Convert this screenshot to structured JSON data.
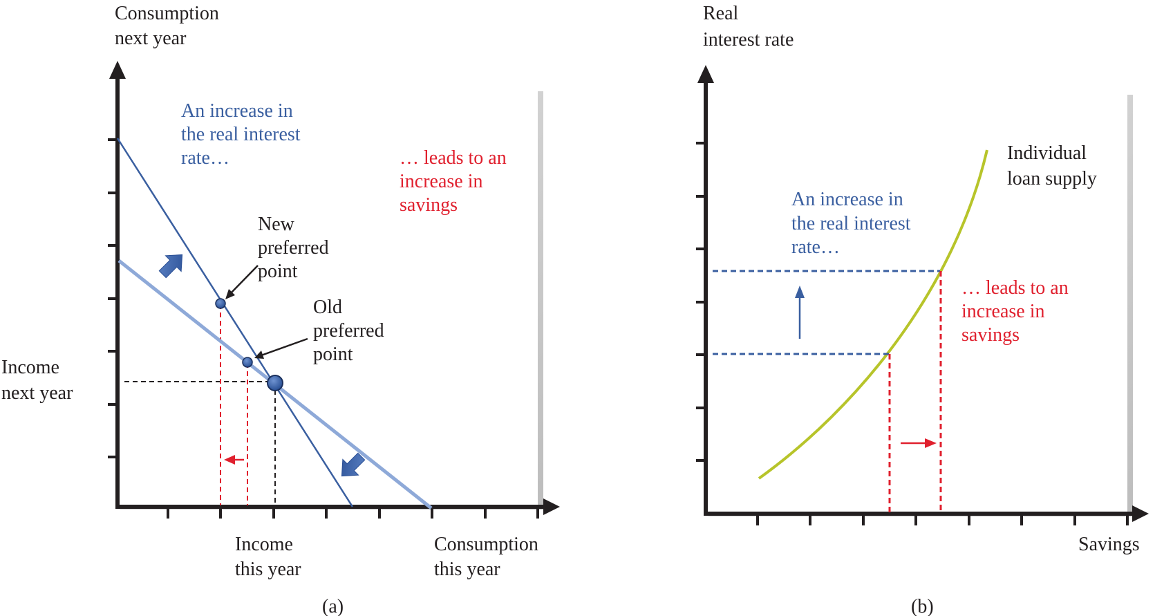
{
  "colors": {
    "axis": "#231f20",
    "steep_line": "#3a5fa0",
    "flat_line": "#8ea9d8",
    "point": "#2f5aa0",
    "blue_text": "#3a5fa0",
    "red": "#e0202e",
    "curve": "#b7c42a",
    "arrow_fill": "#3d66ad"
  },
  "panel_a": {
    "y_axis_label": [
      "Consumption",
      "next year"
    ],
    "income_next_label": [
      "Income",
      "next year"
    ],
    "income_this_label": [
      "Income",
      "this year"
    ],
    "x_axis_label": [
      "Consumption",
      "this year"
    ],
    "blue_annotation": [
      "An increase in",
      "the real interest",
      "rate…"
    ],
    "red_annotation": [
      "… leads to an",
      "increase in",
      "savings"
    ],
    "new_point_label": [
      "New",
      "preferred",
      "point"
    ],
    "old_point_label": [
      "Old",
      "preferred",
      "point"
    ],
    "caption": "(a)"
  },
  "panel_b": {
    "y_axis_label": [
      "Real",
      "interest rate"
    ],
    "x_axis_label": "Savings",
    "curve_label": [
      "Individual",
      "loan supply"
    ],
    "blue_annotation": [
      "An increase in",
      "the real interest",
      "rate…"
    ],
    "red_annotation": [
      "… leads to an",
      "increase in",
      "savings"
    ],
    "caption": "(b)"
  }
}
